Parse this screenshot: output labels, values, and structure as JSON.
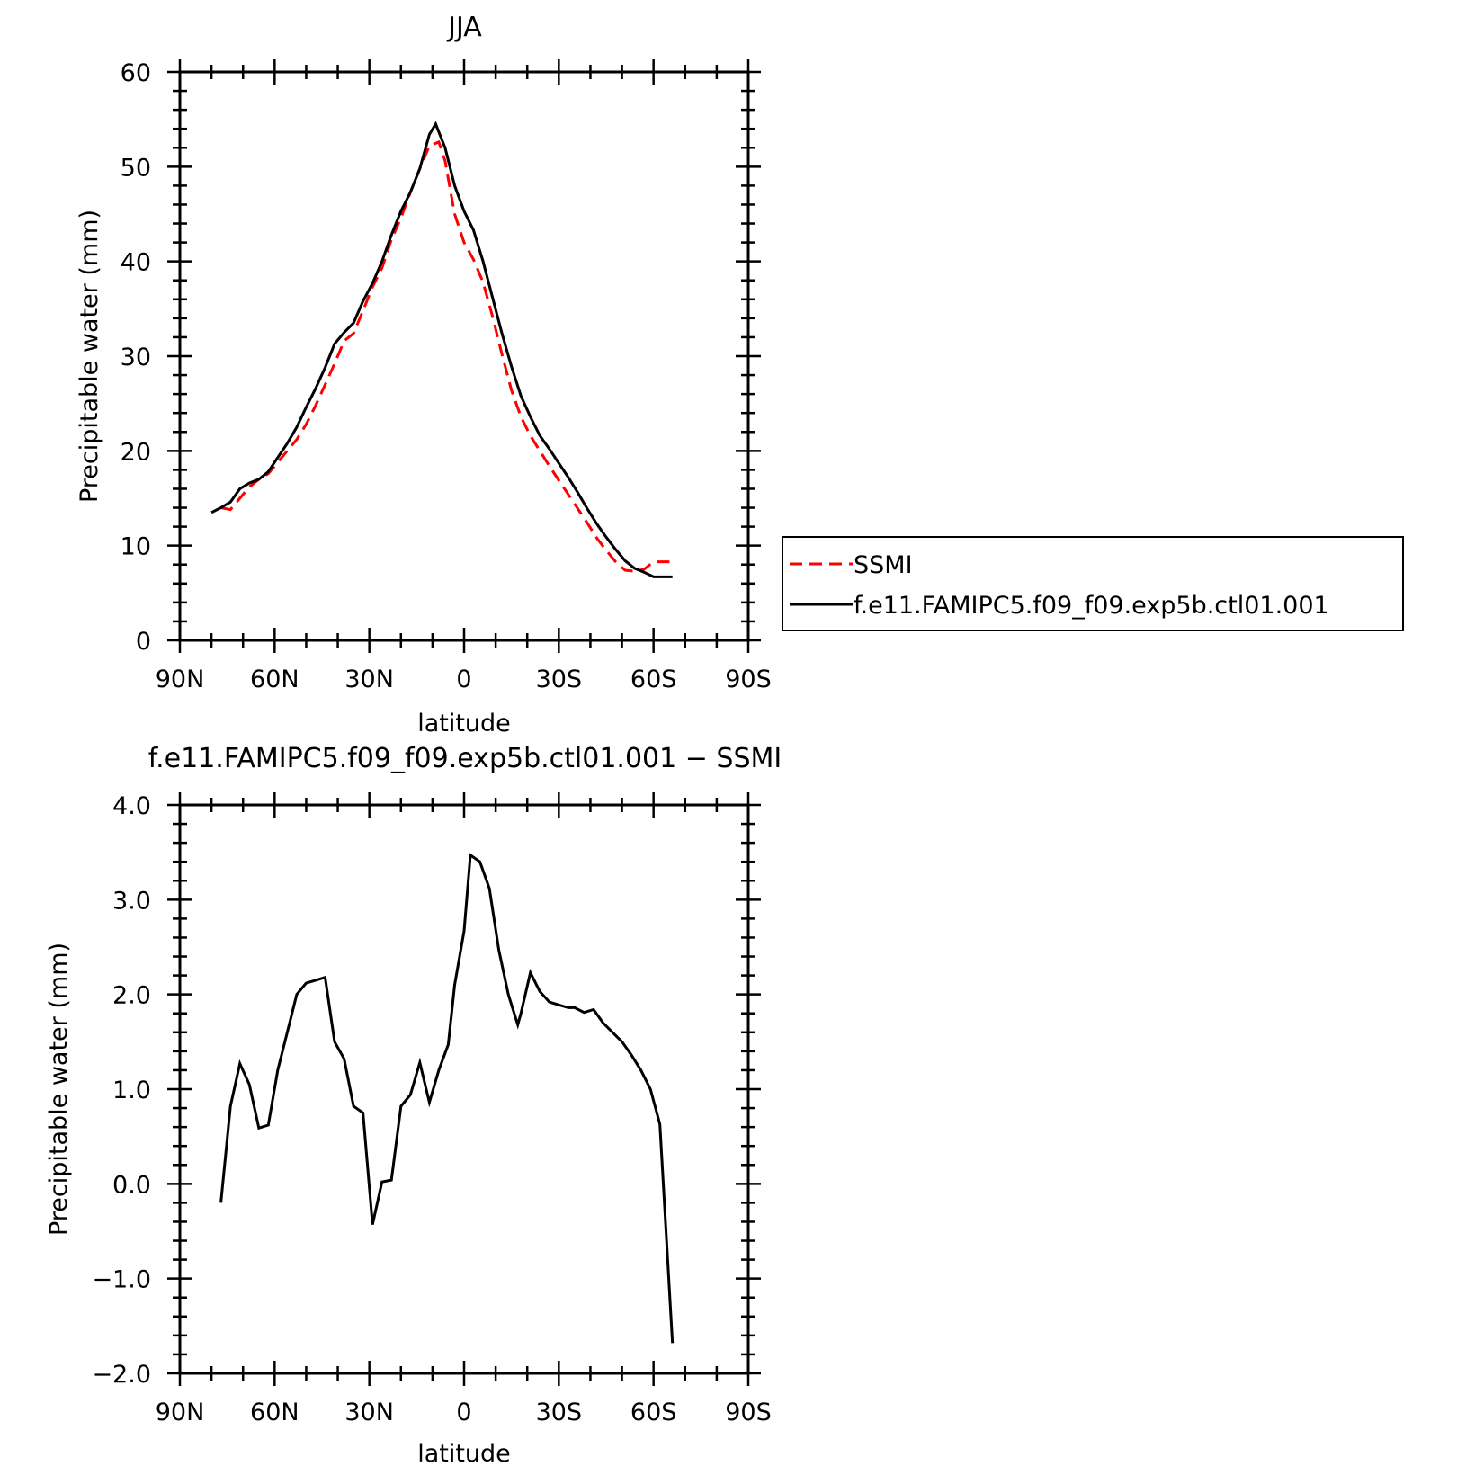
{
  "chart_data": [
    {
      "type": "line",
      "title": "JJA",
      "xlabel": "latitude",
      "ylabel": "Precipitable water (mm)",
      "xlim": [
        -90,
        90
      ],
      "ylim": [
        0,
        60
      ],
      "xtick_values": [
        -90,
        -60,
        -30,
        0,
        30,
        60,
        90
      ],
      "xtick_labels": [
        "90N",
        "60N",
        "30N",
        "0",
        "30S",
        "60S",
        "90S"
      ],
      "ytick_values": [
        0,
        10,
        20,
        30,
        40,
        50,
        60
      ],
      "ytick_labels": [
        "0",
        "10",
        "20",
        "30",
        "40",
        "50",
        "60"
      ],
      "legend_position": "right",
      "series": [
        {
          "name": "SSMI",
          "color": "#ff0000",
          "dash": "dashed",
          "x": [
            -77,
            -74,
            -71,
            -68,
            -65,
            -62,
            -59,
            -56,
            -53,
            -50,
            -47,
            -44,
            -41,
            -38,
            -35,
            -32,
            -29,
            -26,
            -23,
            -20,
            -17,
            -14,
            -11,
            -8,
            -6,
            -3,
            0,
            3,
            6,
            9,
            12,
            15,
            18,
            21,
            24,
            27,
            30,
            33,
            36,
            39,
            42,
            45,
            48,
            51,
            54,
            57,
            60,
            63,
            66
          ],
          "values": [
            14.0,
            13.8,
            15.0,
            16.2,
            17.0,
            17.6,
            18.8,
            20.0,
            21.2,
            22.8,
            24.8,
            27.0,
            29.2,
            31.6,
            32.4,
            34.8,
            37.3,
            39.3,
            42.3,
            44.6,
            47.3,
            49.8,
            52.2,
            52.6,
            50.6,
            45.0,
            42.0,
            40.2,
            37.8,
            34.2,
            30.2,
            26.4,
            23.6,
            21.6,
            20.0,
            18.4,
            16.9,
            15.4,
            13.9,
            12.4,
            10.8,
            9.5,
            8.3,
            7.4,
            7.3,
            7.5,
            8.3,
            8.3,
            8.3
          ]
        },
        {
          "name": "f.e11.FAMIPC5.f09_f09.exp5b.ctl01.001",
          "color": "#000000",
          "dash": "solid",
          "x": [
            -80,
            -77,
            -74,
            -71,
            -68,
            -65,
            -62,
            -59,
            -56,
            -53,
            -50,
            -47,
            -44,
            -41,
            -38,
            -35,
            -32,
            -29,
            -26,
            -23,
            -20,
            -17,
            -14,
            -11,
            -9,
            -6,
            -3,
            0,
            3,
            6,
            9,
            12,
            15,
            18,
            21,
            24,
            27,
            30,
            33,
            36,
            39,
            42,
            45,
            48,
            51,
            54,
            57,
            60,
            63,
            66
          ],
          "values": [
            13.5,
            14.0,
            14.6,
            16.0,
            16.6,
            17.0,
            17.8,
            19.3,
            20.8,
            22.5,
            24.6,
            26.6,
            28.8,
            31.3,
            32.5,
            33.5,
            35.8,
            37.7,
            40.0,
            42.8,
            45.3,
            47.3,
            49.8,
            53.4,
            54.5,
            52.0,
            48.0,
            45.3,
            43.3,
            40.0,
            36.2,
            32.4,
            28.9,
            25.8,
            23.6,
            21.6,
            20.2,
            18.7,
            17.2,
            15.6,
            13.9,
            12.3,
            10.9,
            9.6,
            8.4,
            7.6,
            7.2,
            6.7,
            6.7,
            6.7
          ]
        }
      ]
    },
    {
      "type": "line",
      "title": "f.e11.FAMIPC5.f09_f09.exp5b.ctl01.001 − SSMI",
      "xlabel": "latitude",
      "ylabel": "Precipitable water (mm)",
      "xlim": [
        -90,
        90
      ],
      "ylim": [
        -2.0,
        4.0
      ],
      "xtick_values": [
        -90,
        -60,
        -30,
        0,
        30,
        60,
        90
      ],
      "xtick_labels": [
        "90N",
        "60N",
        "30N",
        "0",
        "30S",
        "60S",
        "90S"
      ],
      "ytick_values": [
        -2.0,
        -1.0,
        0.0,
        1.0,
        2.0,
        3.0,
        4.0
      ],
      "ytick_labels": [
        "−2.0",
        "−1.0",
        "0.0",
        "1.0",
        "2.0",
        "3.0",
        "4.0"
      ],
      "series": [
        {
          "color": "#000000",
          "dash": "solid",
          "x": [
            -77,
            -74,
            -71,
            -68,
            -65,
            -62,
            -59,
            -56,
            -53,
            -50,
            -47,
            -44,
            -41,
            -38,
            -35,
            -32,
            -29,
            -26,
            -23,
            -20,
            -17,
            -14,
            -11,
            -8,
            -5,
            -3,
            0,
            2,
            5,
            8,
            11,
            14,
            17,
            18,
            21,
            24,
            27,
            30,
            33,
            35,
            38,
            41,
            44,
            47,
            50,
            53,
            56,
            59,
            62,
            66
          ],
          "values": [
            -0.2,
            0.82,
            1.27,
            1.05,
            0.59,
            0.62,
            1.2,
            1.6,
            2.0,
            2.12,
            2.15,
            2.18,
            1.5,
            1.32,
            0.82,
            0.75,
            -0.43,
            0.02,
            0.04,
            0.82,
            0.94,
            1.28,
            0.86,
            1.2,
            1.47,
            2.1,
            2.67,
            3.47,
            3.4,
            3.12,
            2.47,
            2.0,
            1.68,
            1.8,
            2.23,
            2.03,
            1.92,
            1.89,
            1.86,
            1.86,
            1.81,
            1.84,
            1.7,
            1.6,
            1.5,
            1.36,
            1.2,
            1.0,
            0.63,
            -1.68
          ]
        }
      ]
    }
  ]
}
